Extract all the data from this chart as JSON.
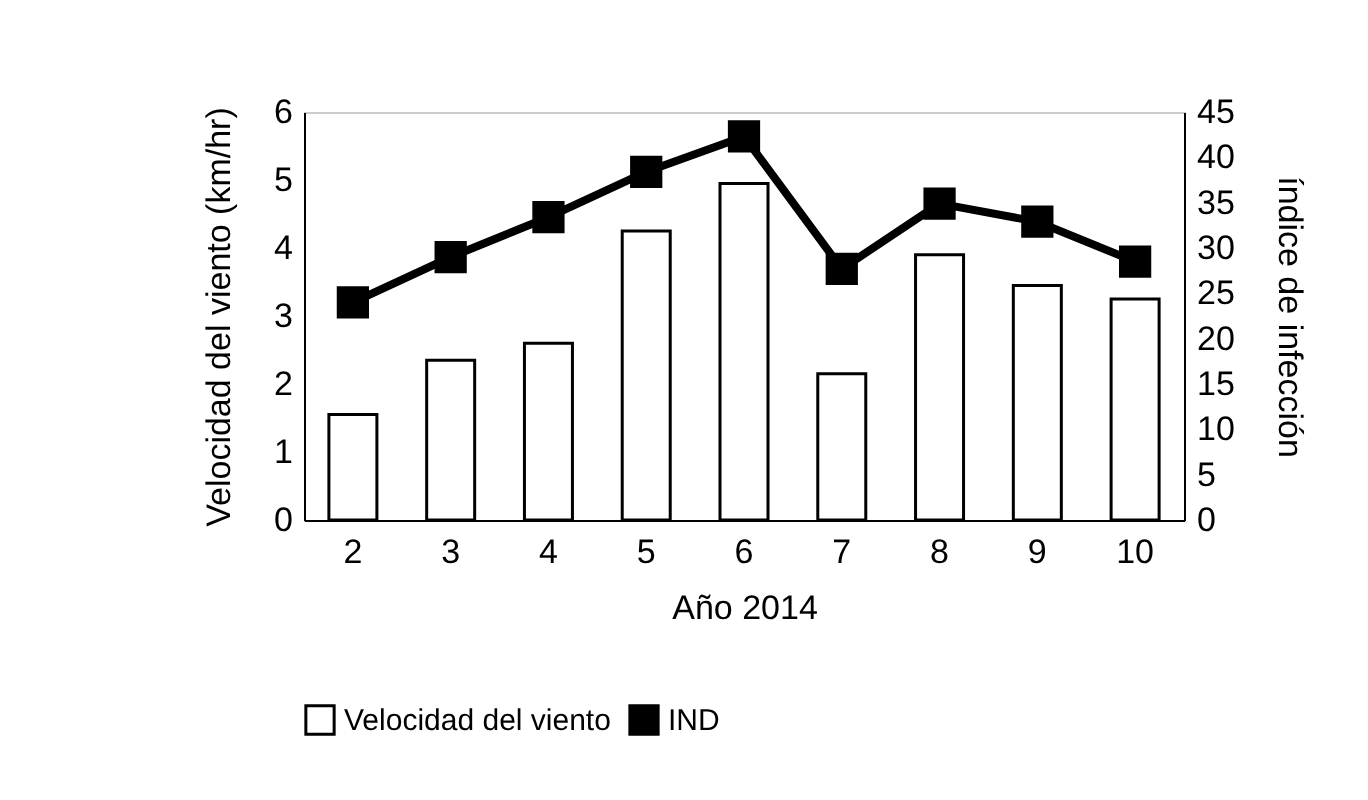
{
  "chart_data": {
    "type": "bar",
    "xlabel": "Año 2014",
    "ylabel": "Velocidad del viento (km/hr)",
    "y2label": "índice de infección",
    "categories": [
      "2",
      "3",
      "4",
      "5",
      "6",
      "7",
      "8",
      "9",
      "10"
    ],
    "series": [
      {
        "name": "Velocidad del viento",
        "color": "#ffffff",
        "values": [
          1.55,
          2.35,
          2.6,
          4.25,
          4.95,
          2.15,
          3.9,
          3.45,
          3.25
        ]
      },
      {
        "name": "IND",
        "type": "line",
        "axis": "y2",
        "color": "#000000",
        "values": [
          24,
          29,
          33.4,
          38.4,
          42.3,
          27.7,
          34.9,
          32.9,
          28.5
        ]
      }
    ],
    "ylim": [
      0,
      6
    ],
    "yticks": [
      0,
      1,
      2,
      3,
      4,
      5,
      6
    ],
    "y2lim": [
      0,
      45
    ],
    "y2ticks": [
      0,
      5,
      10,
      15,
      20,
      25,
      30,
      35,
      40,
      45
    ],
    "grid": false,
    "legend": "bottom",
    "marker": "square",
    "line_style": "solid"
  }
}
